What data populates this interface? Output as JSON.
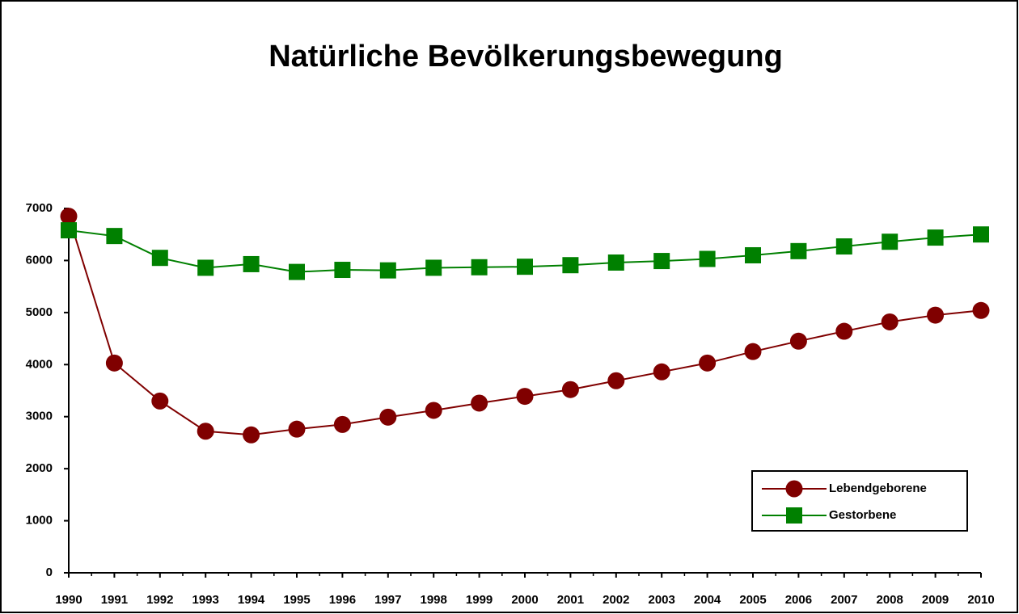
{
  "chart_data": {
    "type": "line",
    "title": "Natürliche Bevölkerungsbewegung",
    "categories": [
      "1990",
      "1991",
      "1992",
      "1993",
      "1994",
      "1995",
      "1996",
      "1997",
      "1998",
      "1999",
      "2000",
      "2001",
      "2002",
      "2003",
      "2004",
      "2005",
      "2006",
      "2007",
      "2008",
      "2009",
      "2010"
    ],
    "series": [
      {
        "name": "Lebendgeborene",
        "color": "#800000",
        "marker": "circle",
        "values": [
          6850,
          4030,
          3300,
          2720,
          2650,
          2760,
          2850,
          2990,
          3120,
          3260,
          3390,
          3520,
          3690,
          3860,
          4030,
          4250,
          4450,
          4640,
          4820,
          4950,
          5040
        ]
      },
      {
        "name": "Gestorbene",
        "color": "#008000",
        "marker": "square",
        "values": [
          6580,
          6470,
          6050,
          5860,
          5930,
          5780,
          5820,
          5810,
          5860,
          5870,
          5880,
          5910,
          5960,
          5990,
          6030,
          6100,
          6180,
          6270,
          6360,
          6440,
          6500
        ]
      }
    ],
    "ylim": [
      0,
      7000
    ],
    "yticks": [
      0,
      1000,
      2000,
      3000,
      4000,
      5000,
      6000,
      7000
    ],
    "grid": false,
    "legend": "lower right"
  }
}
